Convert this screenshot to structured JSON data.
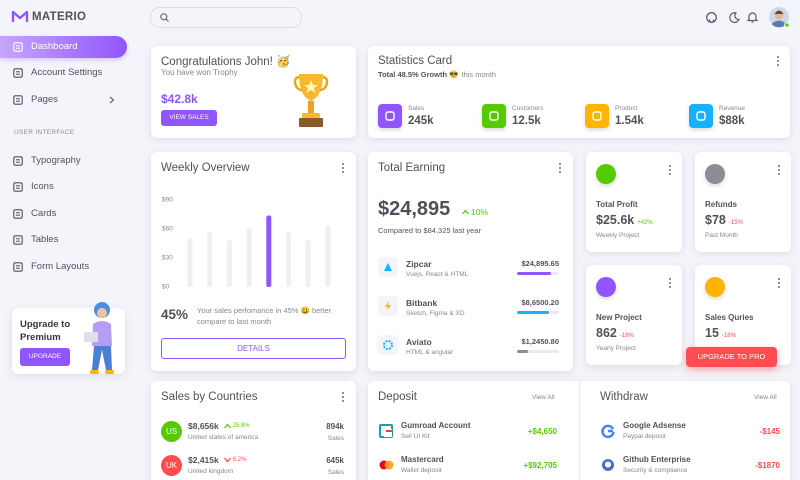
{
  "sidebar": {
    "brand": "MATERIO",
    "menu": [
      "Dashboard",
      "Account Settings",
      "Pages"
    ],
    "section": "USER INTERFACE",
    "ui_menu": [
      "Typography",
      "Icons",
      "Cards",
      "Tables",
      "Form Layouts"
    ],
    "upgrade_title": "Upgrade to Premium",
    "upgrade_button": "UPGRADE"
  },
  "congrats": {
    "title": "Congratulations John! 🥳",
    "subtitle": "You have won Trophy",
    "amount": "$42.8k",
    "button": "VIEW SALES"
  },
  "statistics": {
    "title": "Statistics Card",
    "growth": "Total 48.5% Growth 😎",
    "period": "this month",
    "items": [
      {
        "label": "Sales",
        "value": "245k",
        "color": "#9155fd"
      },
      {
        "label": "Customers",
        "value": "12.5k",
        "color": "#56ca00"
      },
      {
        "label": "Product",
        "value": "1.54k",
        "color": "#ffb400"
      },
      {
        "label": "Revenue",
        "value": "$88k",
        "color": "#16b1ff"
      }
    ]
  },
  "weekly_overview": {
    "title": "Weekly Overview",
    "ylim": [
      0,
      90
    ],
    "yticks": [
      {
        "value": 90,
        "label": "$90"
      },
      {
        "value": 60,
        "label": "$60"
      },
      {
        "value": 30,
        "label": "$30"
      },
      {
        "value": 0,
        "label": "$0"
      }
    ],
    "values": [
      50,
      57,
      49,
      61,
      74,
      57,
      49,
      64
    ],
    "bar_color": "#f0eff2",
    "highlight_color": "#9155fd",
    "highlight_index": 4,
    "percent": "45%",
    "text": "Your sales perfomance in 45% 😃 better compare to last month",
    "button": "DETAILS"
  },
  "total_earning": {
    "title": "Total Earning",
    "amount": "$24,895",
    "change": "10%",
    "comparison": "Compared to $84,325 last year",
    "items": [
      {
        "name": "Zipcar",
        "subtitle": "Vuejs, React & HTML",
        "amount": "$24,895.65",
        "progress": 80,
        "color": "#9155fd"
      },
      {
        "name": "Bitbank",
        "subtitle": "Sketch, Figma & XD",
        "amount": "$8,6500.20",
        "progress": 75,
        "color": "#16b1ff"
      },
      {
        "name": "Aviato",
        "subtitle": "HTML & angular",
        "amount": "$1,2450.80",
        "progress": 25,
        "color": "#8a8d93"
      }
    ]
  },
  "stat_cards": [
    {
      "title": "Total Profit",
      "value": "$25.6k",
      "change": "+42%",
      "subtitle": "Weekly Project",
      "color": "#56ca00",
      "change_color": "#56ca00"
    },
    {
      "title": "Refunds",
      "value": "$78",
      "change": "-15%",
      "subtitle": "Past Month",
      "color": "#8a8d93",
      "change_color": "#ff4c51"
    },
    {
      "title": "New Project",
      "value": "862",
      "change": "-18%",
      "subtitle": "Yearly Project",
      "color": "#9155fd",
      "change_color": "#ff4c51"
    },
    {
      "title": "Sales Quries",
      "value": "15",
      "change": "-18%",
      "color": "#ffb400",
      "change_color": "#ff4c51"
    }
  ],
  "upgrade_pro": "UPGRADE TO PRO",
  "sales_by_countries": {
    "title": "Sales by Countries",
    "rows": [
      {
        "code": "US",
        "amount": "$8,656k",
        "change": "25.8%",
        "arrow": "up",
        "country": "United states of america",
        "sales": "894k",
        "sales_label": "Sales",
        "color": "#56ca00"
      },
      {
        "code": "UK",
        "amount": "$2,415k",
        "change": "6.2%",
        "arrow": "down",
        "country": "United kingdom",
        "sales": "645k",
        "sales_label": "Sales",
        "color": "#ff4c51"
      }
    ]
  },
  "deposit": {
    "title": "Deposit",
    "view_all": "View All",
    "items": [
      {
        "name": "Gumroad Account",
        "subtitle": "Sell UI Kit",
        "amount": "+$4,650"
      },
      {
        "name": "Mastercard",
        "subtitle": "Wallet deposit",
        "amount": "+$92,705"
      }
    ]
  },
  "withdraw": {
    "title": "Withdraw",
    "view_all": "View All",
    "items": [
      {
        "name": "Google Adsense",
        "subtitle": "Paypal deposit",
        "amount": "-$145"
      },
      {
        "name": "Github Enterprise",
        "subtitle": "Security & compliance",
        "amount": "-$1870"
      }
    ]
  }
}
